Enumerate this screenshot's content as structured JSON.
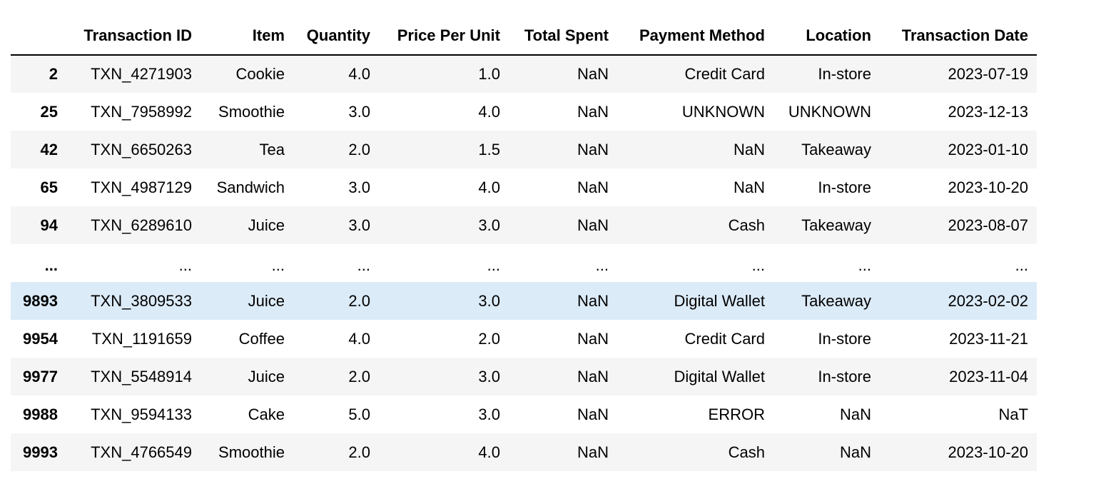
{
  "table": {
    "columns": [
      "",
      "Transaction ID",
      "Item",
      "Quantity",
      "Price Per Unit",
      "Total Spent",
      "Payment Method",
      "Location",
      "Transaction Date"
    ],
    "rows": [
      {
        "index": "2",
        "values": [
          "TXN_4271903",
          "Cookie",
          "4.0",
          "1.0",
          "NaN",
          "Credit Card",
          "In-store",
          "2023-07-19"
        ]
      },
      {
        "index": "25",
        "values": [
          "TXN_7958992",
          "Smoothie",
          "3.0",
          "4.0",
          "NaN",
          "UNKNOWN",
          "UNKNOWN",
          "2023-12-13"
        ]
      },
      {
        "index": "42",
        "values": [
          "TXN_6650263",
          "Tea",
          "2.0",
          "1.5",
          "NaN",
          "NaN",
          "Takeaway",
          "2023-01-10"
        ]
      },
      {
        "index": "65",
        "values": [
          "TXN_4987129",
          "Sandwich",
          "3.0",
          "4.0",
          "NaN",
          "NaN",
          "In-store",
          "2023-10-20"
        ]
      },
      {
        "index": "94",
        "values": [
          "TXN_6289610",
          "Juice",
          "3.0",
          "3.0",
          "NaN",
          "Cash",
          "Takeaway",
          "2023-08-07"
        ]
      },
      {
        "index": "...",
        "values": [
          "...",
          "...",
          "...",
          "...",
          "...",
          "...",
          "...",
          "..."
        ]
      },
      {
        "index": "9893",
        "values": [
          "TXN_3809533",
          "Juice",
          "2.0",
          "3.0",
          "NaN",
          "Digital Wallet",
          "Takeaway",
          "2023-02-02"
        ]
      },
      {
        "index": "9954",
        "values": [
          "TXN_1191659",
          "Coffee",
          "4.0",
          "2.0",
          "NaN",
          "Credit Card",
          "In-store",
          "2023-11-21"
        ]
      },
      {
        "index": "9977",
        "values": [
          "TXN_5548914",
          "Juice",
          "2.0",
          "3.0",
          "NaN",
          "Digital Wallet",
          "In-store",
          "2023-11-04"
        ]
      },
      {
        "index": "9988",
        "values": [
          "TXN_9594133",
          "Cake",
          "5.0",
          "3.0",
          "NaN",
          "ERROR",
          "NaN",
          "NaT"
        ]
      },
      {
        "index": "9993",
        "values": [
          "TXN_4766549",
          "Smoothie",
          "2.0",
          "4.0",
          "NaN",
          "Cash",
          "NaN",
          "2023-10-20"
        ]
      }
    ]
  }
}
